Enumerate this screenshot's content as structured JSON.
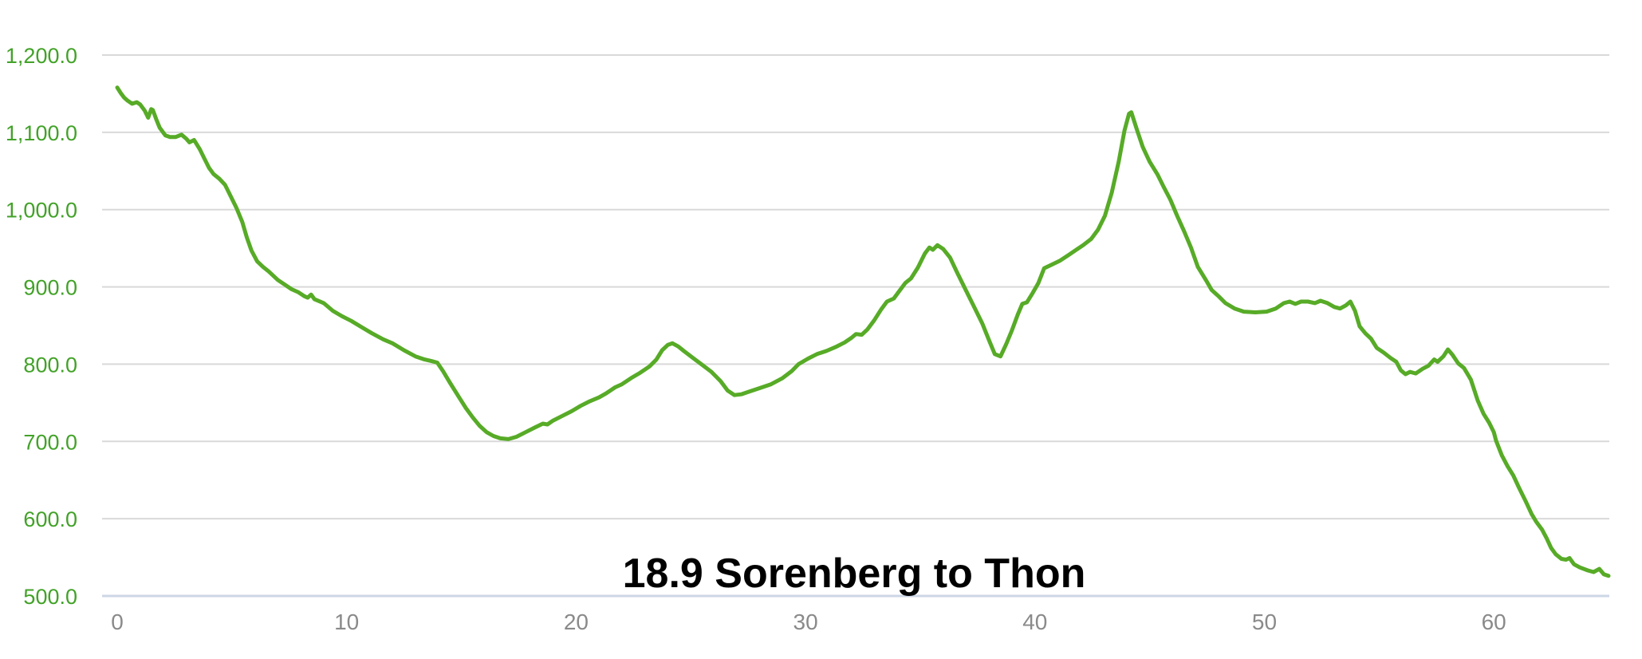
{
  "chart": {
    "title": "18.9 Sorenberg to Thon"
  },
  "chart_data": {
    "type": "line",
    "title": "18.9 Sorenberg to Thon",
    "xlabel": "",
    "ylabel": "",
    "xlim": [
      0,
      65
    ],
    "ylim": [
      500,
      1200
    ],
    "grid": "horizontal-only",
    "legend": "none",
    "x_ticks": [
      {
        "value": 0,
        "label": "0"
      },
      {
        "value": 10,
        "label": "10"
      },
      {
        "value": 20,
        "label": "20"
      },
      {
        "value": 30,
        "label": "30"
      },
      {
        "value": 40,
        "label": "40"
      },
      {
        "value": 50,
        "label": "50"
      },
      {
        "value": 60,
        "label": "60"
      }
    ],
    "y_ticks": [
      {
        "value": 1200,
        "label": "1,200.0"
      },
      {
        "value": 1100,
        "label": "1,100.0"
      },
      {
        "value": 1000,
        "label": "1,000.0"
      },
      {
        "value": 900,
        "label": "900.0"
      },
      {
        "value": 800,
        "label": "800.0"
      },
      {
        "value": 700,
        "label": "700.0"
      },
      {
        "value": 600,
        "label": "600.0"
      },
      {
        "value": 500,
        "label": "500.0"
      }
    ],
    "colors": {
      "line": "#57ab27",
      "y_labels": "#42a228",
      "x_labels": "#8a8a8a",
      "gridline": "#d9d9d9",
      "baseline": "#ccd6e6",
      "title": "#000000",
      "background": "#ffffff"
    },
    "series": [
      {
        "name": "elevation-profile",
        "color": "#57ab27",
        "points": [
          [
            0,
            1158
          ],
          [
            0.15,
            1151
          ],
          [
            0.3,
            1145
          ],
          [
            0.45,
            1141
          ],
          [
            0.65,
            1137
          ],
          [
            0.85,
            1139
          ],
          [
            1.0,
            1136
          ],
          [
            1.2,
            1128
          ],
          [
            1.35,
            1119
          ],
          [
            1.48,
            1130
          ],
          [
            1.55,
            1129
          ],
          [
            1.7,
            1117
          ],
          [
            1.85,
            1106
          ],
          [
            2.1,
            1096
          ],
          [
            2.3,
            1094
          ],
          [
            2.55,
            1094
          ],
          [
            2.8,
            1097
          ],
          [
            3.0,
            1092
          ],
          [
            3.15,
            1087
          ],
          [
            3.35,
            1090
          ],
          [
            3.6,
            1078
          ],
          [
            3.8,
            1066
          ],
          [
            4.0,
            1054
          ],
          [
            4.2,
            1046
          ],
          [
            4.45,
            1040
          ],
          [
            4.7,
            1032
          ],
          [
            4.95,
            1017
          ],
          [
            5.2,
            1002
          ],
          [
            5.45,
            984
          ],
          [
            5.65,
            964
          ],
          [
            5.85,
            947
          ],
          [
            6.1,
            933
          ],
          [
            6.35,
            926
          ],
          [
            6.6,
            920
          ],
          [
            7.0,
            909
          ],
          [
            7.3,
            903
          ],
          [
            7.6,
            897
          ],
          [
            7.9,
            893
          ],
          [
            8.15,
            888
          ],
          [
            8.3,
            886
          ],
          [
            8.45,
            890
          ],
          [
            8.6,
            884
          ],
          [
            9.0,
            879
          ],
          [
            9.4,
            869
          ],
          [
            9.8,
            862
          ],
          [
            10.2,
            856
          ],
          [
            10.7,
            847
          ],
          [
            11.1,
            840
          ],
          [
            11.6,
            832
          ],
          [
            12.0,
            827
          ],
          [
            12.5,
            818
          ],
          [
            13.0,
            810
          ],
          [
            13.4,
            806
          ],
          [
            13.7,
            804
          ],
          [
            13.95,
            802
          ],
          [
            14.2,
            791
          ],
          [
            14.5,
            776
          ],
          [
            14.9,
            757
          ],
          [
            15.2,
            743
          ],
          [
            15.5,
            731
          ],
          [
            15.8,
            720
          ],
          [
            16.1,
            712
          ],
          [
            16.4,
            707
          ],
          [
            16.7,
            704
          ],
          [
            17.05,
            703
          ],
          [
            17.4,
            706
          ],
          [
            17.8,
            712
          ],
          [
            18.2,
            718
          ],
          [
            18.55,
            723
          ],
          [
            18.75,
            722
          ],
          [
            19.0,
            727
          ],
          [
            19.4,
            733
          ],
          [
            19.8,
            739
          ],
          [
            20.2,
            746
          ],
          [
            20.6,
            752
          ],
          [
            21.0,
            757
          ],
          [
            21.3,
            762
          ],
          [
            21.7,
            770
          ],
          [
            22.0,
            774
          ],
          [
            22.4,
            782
          ],
          [
            22.8,
            789
          ],
          [
            23.2,
            797
          ],
          [
            23.5,
            806
          ],
          [
            23.75,
            818
          ],
          [
            24.0,
            825
          ],
          [
            24.2,
            827
          ],
          [
            24.45,
            823
          ],
          [
            24.7,
            817
          ],
          [
            25.1,
            808
          ],
          [
            25.5,
            799
          ],
          [
            25.9,
            790
          ],
          [
            26.3,
            778
          ],
          [
            26.6,
            766
          ],
          [
            26.9,
            760
          ],
          [
            27.2,
            761
          ],
          [
            27.5,
            764
          ],
          [
            28.0,
            769
          ],
          [
            28.5,
            774
          ],
          [
            29.0,
            782
          ],
          [
            29.4,
            791
          ],
          [
            29.7,
            800
          ],
          [
            30.1,
            807
          ],
          [
            30.5,
            813
          ],
          [
            30.9,
            817
          ],
          [
            31.3,
            822
          ],
          [
            31.7,
            828
          ],
          [
            32.0,
            834
          ],
          [
            32.2,
            839
          ],
          [
            32.45,
            838
          ],
          [
            32.7,
            845
          ],
          [
            33.0,
            857
          ],
          [
            33.3,
            871
          ],
          [
            33.55,
            881
          ],
          [
            33.85,
            885
          ],
          [
            34.1,
            895
          ],
          [
            34.35,
            905
          ],
          [
            34.6,
            911
          ],
          [
            34.9,
            925
          ],
          [
            35.2,
            943
          ],
          [
            35.4,
            951
          ],
          [
            35.55,
            948
          ],
          [
            35.75,
            954
          ],
          [
            36.0,
            949
          ],
          [
            36.3,
            938
          ],
          [
            36.6,
            919
          ],
          [
            36.9,
            901
          ],
          [
            37.3,
            877
          ],
          [
            37.7,
            853
          ],
          [
            38.0,
            831
          ],
          [
            38.25,
            813
          ],
          [
            38.5,
            810
          ],
          [
            38.75,
            826
          ],
          [
            39.0,
            844
          ],
          [
            39.25,
            864
          ],
          [
            39.45,
            878
          ],
          [
            39.65,
            880
          ],
          [
            39.9,
            892
          ],
          [
            40.15,
            905
          ],
          [
            40.4,
            924
          ],
          [
            40.75,
            929
          ],
          [
            41.1,
            934
          ],
          [
            41.45,
            941
          ],
          [
            41.8,
            948
          ],
          [
            42.1,
            954
          ],
          [
            42.45,
            962
          ],
          [
            42.75,
            974
          ],
          [
            43.05,
            992
          ],
          [
            43.35,
            1022
          ],
          [
            43.65,
            1062
          ],
          [
            43.9,
            1102
          ],
          [
            44.1,
            1124
          ],
          [
            44.2,
            1126
          ],
          [
            44.45,
            1103
          ],
          [
            44.7,
            1081
          ],
          [
            45.0,
            1062
          ],
          [
            45.35,
            1045
          ],
          [
            45.6,
            1030
          ],
          [
            45.9,
            1013
          ],
          [
            46.2,
            992
          ],
          [
            46.5,
            972
          ],
          [
            46.8,
            951
          ],
          [
            47.1,
            926
          ],
          [
            47.45,
            909
          ],
          [
            47.7,
            896
          ],
          [
            48.0,
            888
          ],
          [
            48.3,
            879
          ],
          [
            48.7,
            872
          ],
          [
            49.1,
            868
          ],
          [
            49.6,
            867
          ],
          [
            50.1,
            868
          ],
          [
            50.5,
            872
          ],
          [
            50.85,
            879
          ],
          [
            51.1,
            881
          ],
          [
            51.35,
            878
          ],
          [
            51.6,
            881
          ],
          [
            51.9,
            881
          ],
          [
            52.2,
            879
          ],
          [
            52.45,
            882
          ],
          [
            52.75,
            879
          ],
          [
            53.05,
            874
          ],
          [
            53.3,
            872
          ],
          [
            53.55,
            876
          ],
          [
            53.75,
            881
          ],
          [
            53.95,
            869
          ],
          [
            54.15,
            849
          ],
          [
            54.4,
            840
          ],
          [
            54.65,
            833
          ],
          [
            54.9,
            821
          ],
          [
            55.2,
            815
          ],
          [
            55.5,
            808
          ],
          [
            55.75,
            803
          ],
          [
            55.95,
            792
          ],
          [
            56.15,
            787
          ],
          [
            56.35,
            790
          ],
          [
            56.6,
            788
          ],
          [
            56.9,
            794
          ],
          [
            57.15,
            798
          ],
          [
            57.4,
            806
          ],
          [
            57.55,
            803
          ],
          [
            57.8,
            810
          ],
          [
            58.0,
            819
          ],
          [
            58.2,
            812
          ],
          [
            58.45,
            801
          ],
          [
            58.7,
            795
          ],
          [
            59.0,
            780
          ],
          [
            59.3,
            753
          ],
          [
            59.55,
            736
          ],
          [
            59.8,
            724
          ],
          [
            60.0,
            712
          ],
          [
            60.1,
            701
          ],
          [
            60.35,
            682
          ],
          [
            60.6,
            668
          ],
          [
            60.85,
            656
          ],
          [
            61.1,
            640
          ],
          [
            61.4,
            622
          ],
          [
            61.65,
            606
          ],
          [
            61.85,
            596
          ],
          [
            62.1,
            586
          ],
          [
            62.3,
            575
          ],
          [
            62.5,
            562
          ],
          [
            62.7,
            554
          ],
          [
            62.95,
            548
          ],
          [
            63.15,
            547
          ],
          [
            63.3,
            549
          ],
          [
            63.5,
            541
          ],
          [
            63.75,
            537
          ],
          [
            64.1,
            533
          ],
          [
            64.35,
            531
          ],
          [
            64.6,
            535
          ],
          [
            64.8,
            528
          ],
          [
            65.0,
            526
          ]
        ]
      }
    ]
  }
}
